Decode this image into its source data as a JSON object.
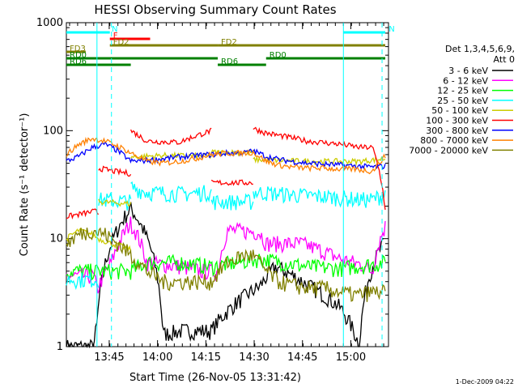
{
  "chart_data": {
    "type": "line",
    "title": "HESSI Observing Summary Count Rates",
    "xlabel": "Start Time (26-Nov-05 13:31:42)",
    "ylabel": "Count Rate (s⁻¹ detector⁻¹)",
    "yscale": "log",
    "ylim": [
      1,
      1000
    ],
    "xlim_minutes": [
      0,
      100
    ],
    "x_ticks": [
      {
        "minute": 13.3,
        "label": "13:45"
      },
      {
        "minute": 28.3,
        "label": "14:00"
      },
      {
        "minute": 43.3,
        "label": "14:15"
      },
      {
        "minute": 58.3,
        "label": "14:30"
      },
      {
        "minute": 73.3,
        "label": "14:45"
      },
      {
        "minute": 88.3,
        "label": "15:00"
      }
    ],
    "y_ticks": [
      {
        "value": 1,
        "label": "1"
      },
      {
        "value": 10,
        "label": "10"
      },
      {
        "value": 100,
        "label": "100"
      },
      {
        "value": 1000,
        "label": "1000"
      }
    ],
    "legend": {
      "placement": "right",
      "header": [
        "Det 1,3,4,5,6,9,",
        "Att 0"
      ]
    },
    "series": [
      {
        "name": "3 - 6 keV",
        "color": "#000000",
        "x": [
          0,
          8.5,
          9.5,
          20,
          30,
          36,
          45,
          60,
          65,
          75,
          85,
          91,
          94,
          98.5
        ],
        "y": [
          1,
          1,
          1.6,
          19,
          1.3,
          1.4,
          1.4,
          3.6,
          5.5,
          3.7,
          2.3,
          1,
          4.5,
          9
        ]
      },
      {
        "name": "6 - 12 keV",
        "color": "#ff00ff",
        "x": [
          0,
          8.5,
          9.5,
          14,
          20,
          25,
          36,
          42,
          47,
          50,
          60,
          62,
          73,
          78,
          85,
          91,
          95,
          99
        ],
        "y": [
          4.5,
          4.5,
          3.3,
          6,
          14,
          6,
          5.5,
          5,
          5,
          12,
          11.5,
          9,
          9,
          8,
          6.5,
          5.8,
          5,
          13
        ]
      },
      {
        "name": "12 - 25 keV",
        "color": "#00ff00",
        "x": [
          0,
          20,
          25,
          36,
          45,
          60,
          75,
          85,
          99
        ],
        "y": [
          5,
          5,
          6,
          6,
          5.5,
          6.5,
          5.5,
          5.3,
          6
        ]
      },
      {
        "name": "25 - 50 keV",
        "color": "#00ffff",
        "x": [
          0,
          4,
          7,
          9,
          10,
          14,
          20,
          25,
          36,
          45,
          50,
          55,
          58,
          62,
          75,
          85,
          91,
          95,
          99
        ],
        "y": [
          4.2,
          4.2,
          4.2,
          4.2,
          4.2,
          4.2,
          4.2,
          4.2,
          4.2,
          4.2,
          4.2,
          4.2,
          4.2,
          4.2,
          4.2,
          4.2,
          4.2,
          4.2,
          4.2
        ],
        "segments": [
          {
            "x": [
              0,
              10
            ],
            "y": [
              4.2,
              4.2
            ]
          },
          {
            "x": [
              10,
              20
            ],
            "y": [
              23,
              22
            ]
          },
          {
            "x": [
              20,
              25,
              36,
              45
            ],
            "y": [
              30,
              27,
              26,
              27
            ]
          },
          {
            "x": [
              45,
              58
            ],
            "y": [
              22,
              22
            ]
          },
          {
            "x": [
              58,
              75,
              85,
              91,
              95,
              99
            ],
            "y": [
              27,
              25,
              24,
              23,
              23,
              26
            ]
          }
        ]
      },
      {
        "name": "50 - 100 keV",
        "color": "#cccc00",
        "segments": [
          {
            "x": [
              0,
              4,
              8,
              10,
              14,
              20
            ],
            "y": [
              10,
              12,
              11,
              10,
              9,
              8
            ]
          },
          {
            "x": [
              10,
              20
            ],
            "y": [
              22,
              21
            ]
          },
          {
            "x": [
              20,
              30,
              45
            ],
            "y": [
              57,
              59,
              58
            ]
          },
          {
            "x": [
              45,
              58
            ],
            "y": [
              63,
              63
            ]
          },
          {
            "x": [
              58,
              75,
              85,
              91,
              99
            ],
            "y": [
              54,
              52,
              52,
              52,
              55
            ]
          }
        ]
      },
      {
        "name": "100 - 300 keV",
        "color": "#ff0000",
        "segments": [
          {
            "x": [
              0,
              5,
              9,
              10
            ],
            "y": [
              16,
              17,
              18,
              17
            ]
          },
          {
            "x": [
              10,
              15,
              20
            ],
            "y": [
              45,
              42,
              40
            ]
          },
          {
            "x": [
              20,
              25,
              35,
              45
            ],
            "y": [
              100,
              80,
              78,
              100
            ]
          },
          {
            "x": [
              45,
              58
            ],
            "y": [
              33,
              33
            ]
          },
          {
            "x": [
              58,
              62,
              75,
              85,
              91,
              95,
              99
            ],
            "y": [
              105,
              95,
              80,
              75,
              70,
              70,
              18
            ]
          }
        ]
      },
      {
        "name": "300 - 800 keV",
        "color": "#0000ff",
        "x": [
          0,
          4,
          8,
          12,
          16,
          20,
          25,
          30,
          35,
          40,
          45,
          50,
          55,
          58,
          62,
          66,
          70,
          75,
          80,
          85,
          90,
          95,
          99
        ],
        "y": [
          52,
          58,
          70,
          75,
          65,
          52,
          53,
          55,
          57,
          59,
          60,
          62,
          62,
          65,
          58,
          54,
          52,
          50,
          49,
          48,
          47,
          46,
          47
        ]
      },
      {
        "name": "800 - 7000 keV",
        "color": "#ff8000",
        "x": [
          0,
          4,
          8,
          12,
          16,
          20,
          25,
          30,
          35,
          40,
          45,
          50,
          55,
          58,
          62,
          66,
          70,
          75,
          80,
          85,
          90,
          95,
          99
        ],
        "y": [
          60,
          75,
          85,
          80,
          72,
          62,
          52,
          50,
          52,
          55,
          60,
          62,
          62,
          63,
          52,
          48,
          46,
          45,
          45,
          44,
          44,
          42,
          58
        ]
      },
      {
        "name": "7000 - 20000 keV",
        "color": "#808000",
        "x": [
          0,
          4,
          8,
          12,
          16,
          20,
          25,
          30,
          35,
          40,
          45,
          50,
          55,
          58,
          62,
          66,
          70,
          75,
          80,
          85,
          90,
          95,
          99
        ],
        "y": [
          9,
          11,
          12,
          11,
          9,
          7,
          5,
          4,
          4,
          4,
          4,
          6,
          7,
          7,
          5,
          4,
          3.7,
          3.5,
          3.5,
          3.2,
          3,
          3.2,
          3.2
        ]
      }
    ],
    "attenuator_states": [
      {
        "label": "N",
        "color": "#00ffff",
        "x": [
          0,
          13.5
        ],
        "row": 1
      },
      {
        "label": "N",
        "color": "#00ffff",
        "x": [
          86,
          99
        ],
        "row": 1
      },
      {
        "label": "F",
        "color": "#ff0000",
        "x": [
          13.5,
          26
        ],
        "row": 2
      },
      {
        "label": "FD2",
        "color": "#808000",
        "x": [
          13.5,
          47
        ],
        "row": 3
      },
      {
        "label": "FD2",
        "color": "#808000",
        "x": [
          47,
          99
        ],
        "row": 3
      },
      {
        "label": "FD3",
        "color": "#808000",
        "x": [
          0,
          6
        ],
        "row": 4
      },
      {
        "label": "RD0",
        "color": "#008000",
        "x": [
          0,
          47
        ],
        "row": 5
      },
      {
        "label": "RD0",
        "color": "#008000",
        "x": [
          62,
          99
        ],
        "row": 5
      },
      {
        "label": "RD6",
        "color": "#008000",
        "x": [
          0,
          20
        ],
        "row": 6
      },
      {
        "label": "RD6",
        "color": "#008000",
        "x": [
          47,
          62
        ],
        "row": 6
      }
    ],
    "vlines": [
      {
        "x": 9.5,
        "style": "solid",
        "color": "#00ffff"
      },
      {
        "x": 14,
        "style": "dashed",
        "color": "#00ffff"
      },
      {
        "x": 86,
        "style": "solid",
        "color": "#00ffff"
      },
      {
        "x": 98,
        "style": "dashed",
        "color": "#00ffff"
      }
    ],
    "footer": "1-Dec-2009 04:22"
  }
}
